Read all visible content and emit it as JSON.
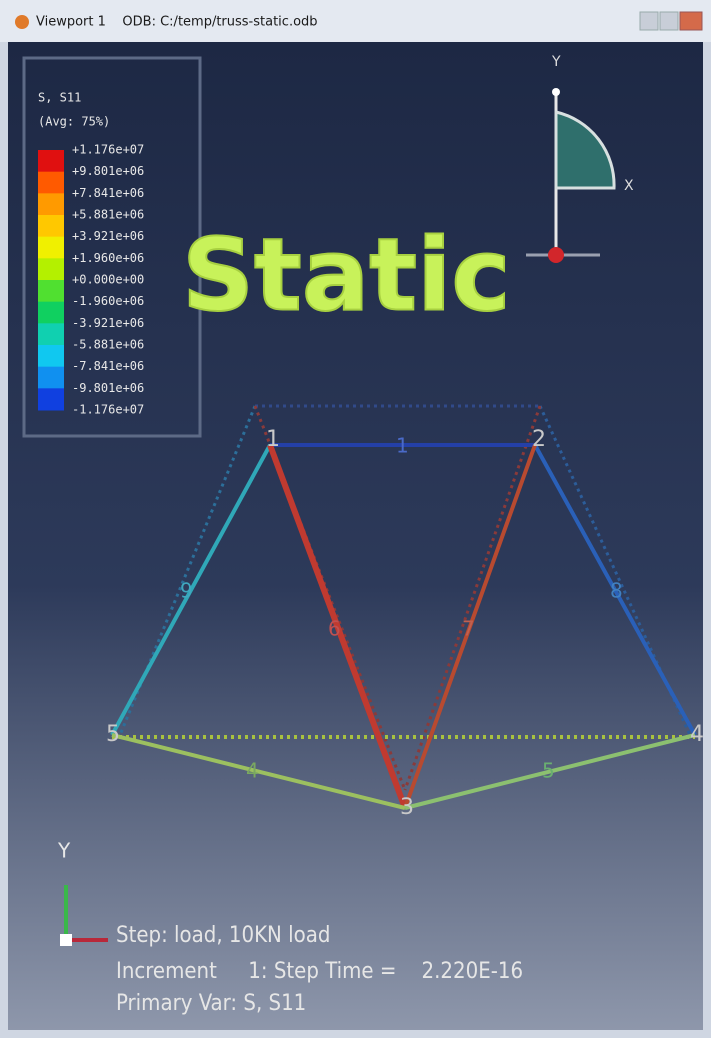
{
  "window": {
    "title": "Viewport 1    ODB: C:/temp/truss-static.odb"
  },
  "legend": {
    "variable": "S, S11",
    "averaging": "(Avg: 75%)",
    "values": [
      "+1.176e+07",
      "+9.801e+06",
      "+7.841e+06",
      "+5.881e+06",
      "+3.921e+06",
      "+1.960e+06",
      "+0.000e+00",
      "-1.960e+06",
      "-3.921e+06",
      "-5.881e+06",
      "-7.841e+06",
      "-9.801e+06",
      "-1.176e+07"
    ]
  },
  "overlay": "Static",
  "view_triad": {
    "y": "Y",
    "x": "X"
  },
  "model": {
    "nodes": [
      "1",
      "2",
      "3",
      "4",
      "5"
    ],
    "elements": [
      "1",
      "9",
      "8",
      "6",
      "7",
      "4",
      "5"
    ]
  },
  "axis_triad": {
    "y": "Y"
  },
  "status": {
    "step": "Step: load, 10KN load",
    "increment": "Increment     1: Step Time =    2.220E-16",
    "primary": "Primary Var: S, S11"
  }
}
